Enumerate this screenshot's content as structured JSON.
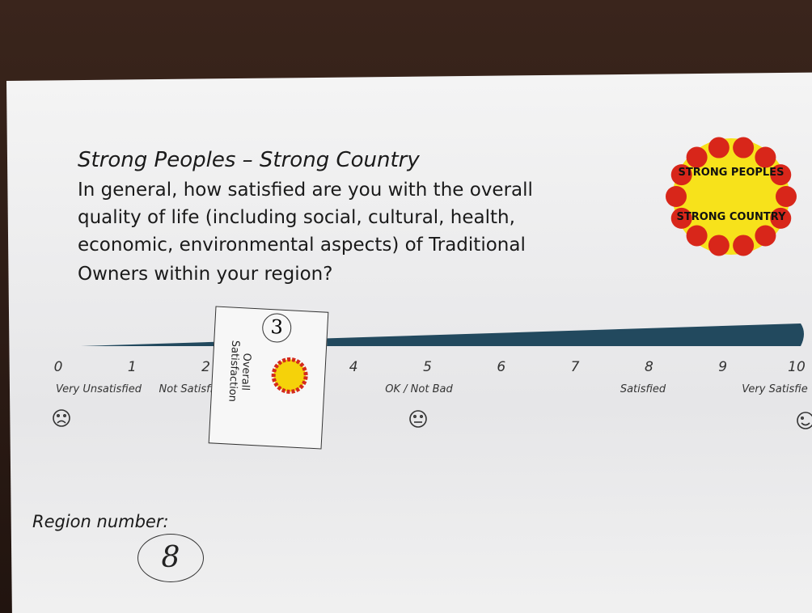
{
  "form": {
    "title": "Strong Peoples – Strong Country",
    "question": [
      "In general, how satisfied are you with the overall",
      "quality of life (including social, cultural, health,",
      "economic, environmental aspects) of Traditional",
      "Owners within your region?"
    ],
    "logo": {
      "top": "STRONG PEOPLES",
      "bottom": "STRONG COUNTRY"
    },
    "scale": {
      "numbers": [
        0,
        1,
        2,
        4,
        5,
        6,
        7,
        8,
        9,
        10
      ],
      "labels": [
        "Very Unsatisfied",
        "Not Satisfi",
        "OK / Not Bad",
        "Satisfied",
        "Very Satisfie"
      ]
    },
    "card": {
      "handwritten": "3",
      "text": [
        "Overall",
        "Satisfaction"
      ]
    },
    "region": {
      "label": "Region number:",
      "handwritten": "8"
    }
  }
}
